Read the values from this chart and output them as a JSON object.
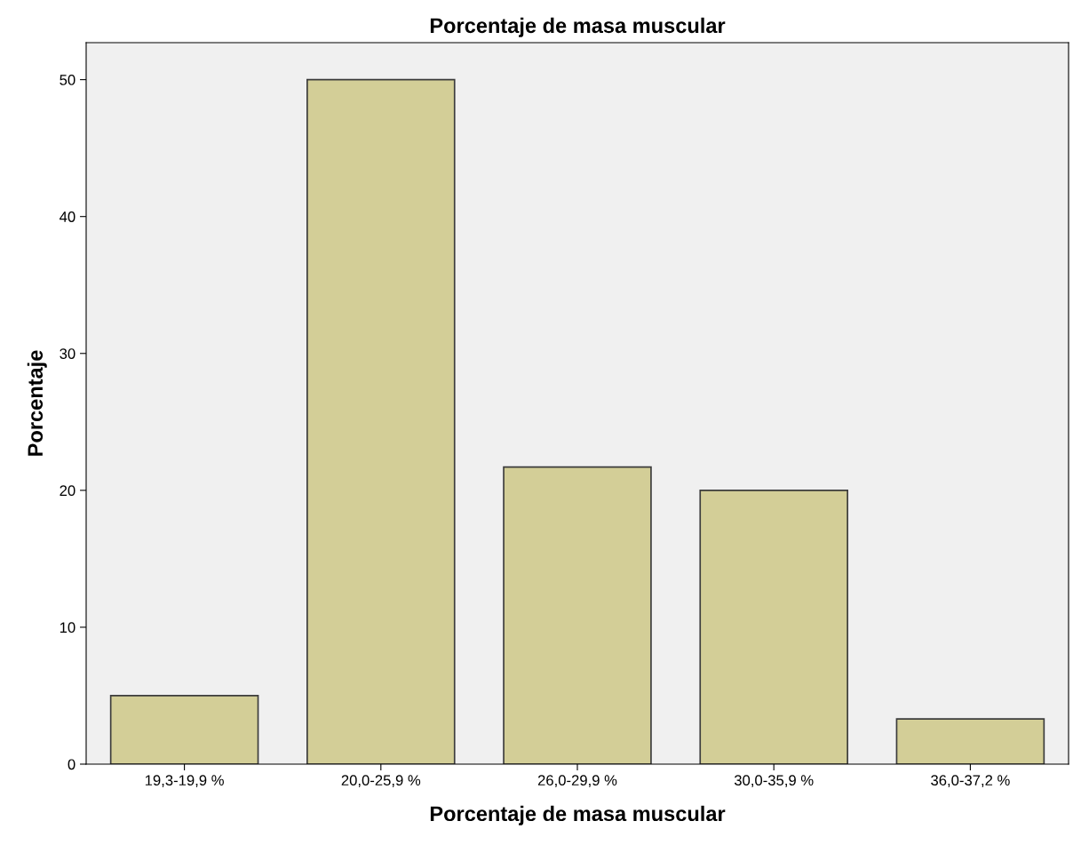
{
  "chart_data": {
    "type": "bar",
    "title": "Porcentaje de masa muscular",
    "xlabel": "Porcentaje de masa muscular",
    "ylabel": "Porcentaje",
    "categories": [
      "19,3-19,9 %",
      "20,0-25,9 %",
      "26,0-29,9 %",
      "30,0-35,9 %",
      "36,0-37,2 %"
    ],
    "values": [
      5.0,
      50.0,
      21.7,
      20.0,
      3.3
    ],
    "color": "#d3ce97",
    "ylim": [
      0,
      52.7
    ],
    "yticks": [
      0,
      10,
      20,
      30,
      40,
      50
    ],
    "grid": false
  }
}
